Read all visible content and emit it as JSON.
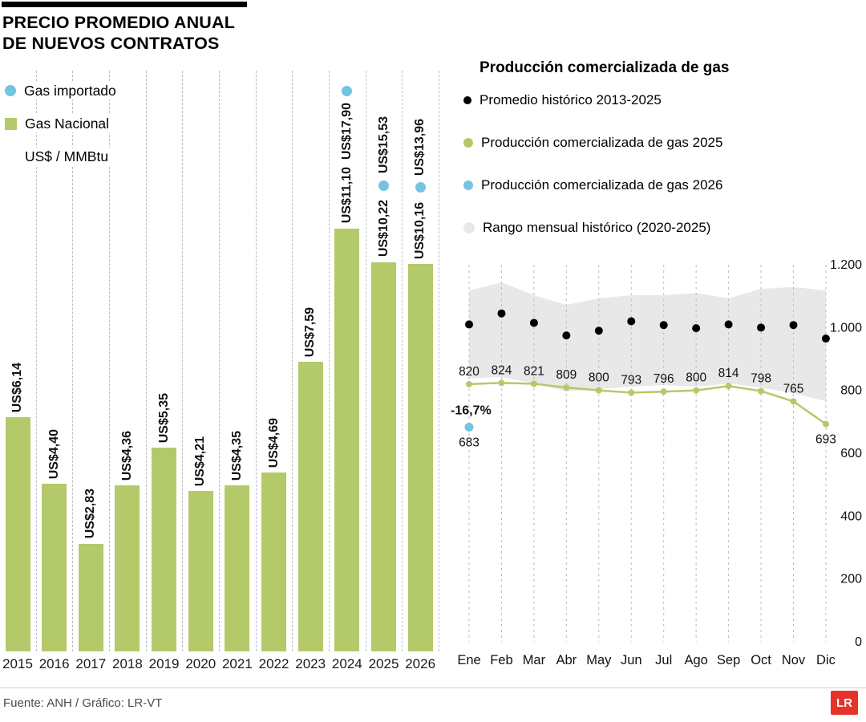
{
  "page": {
    "source": "Fuente: ANH / Gráfico: LR-VT",
    "logo_text": "LR"
  },
  "colors": {
    "national": "#b4c96a",
    "imported": "#74c3e1",
    "historic": "#000000",
    "band": "#e8e8e8",
    "logo_red": "#e6332a"
  },
  "bar_chart_header": {
    "title_line1": "PRECIO PROMEDIO ANUAL",
    "title_line2": "DE NUEVOS CONTRATOS"
  },
  "chart_data": [
    {
      "type": "bar",
      "title": "Precio promedio anual de nuevos contratos",
      "ylabel": "US$ / MMBtu",
      "categories": [
        "2015",
        "2016",
        "2017",
        "2018",
        "2019",
        "2020",
        "2021",
        "2022",
        "2023",
        "2024",
        "2025",
        "2026"
      ],
      "series": [
        {
          "name": "Gas Nacional",
          "values": [
            6.14,
            4.4,
            2.83,
            4.36,
            5.35,
            4.21,
            4.35,
            4.69,
            7.59,
            11.1,
            10.22,
            10.16
          ],
          "labels": [
            "US$6,14",
            "US$4,40",
            "US$2,83",
            "US$4,36",
            "US$5,35",
            "US$4,21",
            "US$4,35",
            "US$4,69",
            "US$7,59",
            "US$11,10",
            "US$10,22",
            "US$10,16"
          ]
        },
        {
          "name": "Gas importado",
          "values": [
            null,
            null,
            null,
            null,
            null,
            null,
            null,
            null,
            null,
            17.9,
            15.53,
            13.96
          ],
          "labels": [
            null,
            null,
            null,
            null,
            null,
            null,
            null,
            null,
            null,
            "US$17,90",
            "US$15,53",
            "US$13,96"
          ]
        }
      ]
    },
    {
      "type": "line",
      "title": "Producción comercializada de gas",
      "categories": [
        "Ene",
        "Feb",
        "Mar",
        "Abr",
        "May",
        "Jun",
        "Jul",
        "Ago",
        "Sep",
        "Oct",
        "Nov",
        "Dic"
      ],
      "ylim": [
        0,
        1200
      ],
      "yticks": [
        0,
        200,
        400,
        600,
        800,
        1000,
        1200
      ],
      "ytick_labels": [
        "0",
        "200",
        "400",
        "600",
        "800",
        "1.000",
        "1.200"
      ],
      "series": [
        {
          "name": "Promedio histórico 2013-2025",
          "style": "points",
          "values": [
            1010,
            1045,
            1015,
            975,
            990,
            1020,
            1008,
            998,
            1010,
            1000,
            1008,
            965
          ]
        },
        {
          "name": "Producción comercializada de gas 2025",
          "style": "line",
          "values": [
            820,
            824,
            821,
            809,
            800,
            793,
            796,
            800,
            814,
            798,
            765,
            693
          ],
          "labels": [
            "820",
            "824",
            "821",
            "809",
            "800",
            "793",
            "796",
            "800",
            "814",
            "798",
            "765",
            "693"
          ]
        },
        {
          "name": "Producción comercializada de gas 2026",
          "style": "points",
          "values": [
            683,
            null,
            null,
            null,
            null,
            null,
            null,
            null,
            null,
            null,
            null,
            null
          ],
          "labels": [
            "683",
            null,
            null,
            null,
            null,
            null,
            null,
            null,
            null,
            null,
            null,
            null
          ],
          "annotation": "-16,7%"
        }
      ],
      "band": {
        "name": "Rango mensual histórico (2020-2025)",
        "upper": [
          1118,
          1144,
          1103,
          1072,
          1093,
          1103,
          1103,
          1110,
          1093,
          1123,
          1129,
          1118
        ],
        "lower": [
          838,
          843,
          822,
          797,
          804,
          812,
          817,
          812,
          822,
          809,
          791,
          766
        ]
      }
    }
  ]
}
